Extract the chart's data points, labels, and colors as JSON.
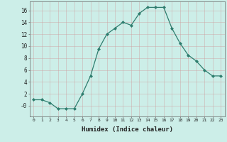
{
  "x": [
    0,
    1,
    2,
    3,
    4,
    5,
    6,
    7,
    8,
    9,
    10,
    11,
    12,
    13,
    14,
    15,
    16,
    17,
    18,
    19,
    20,
    21,
    22,
    23
  ],
  "y": [
    1.0,
    1.0,
    0.5,
    -0.5,
    -0.5,
    -0.5,
    2.0,
    5.0,
    9.5,
    12.0,
    13.0,
    14.0,
    13.5,
    15.5,
    16.5,
    16.5,
    16.5,
    13.0,
    10.5,
    8.5,
    7.5,
    6.0,
    5.0,
    5.0
  ],
  "line_color": "#2e7d6e",
  "marker": "D",
  "marker_size": 2.0,
  "bg_color": "#cceee8",
  "grid_color": "#b0b0b0",
  "xlabel": "Humidex (Indice chaleur)",
  "xlim": [
    -0.5,
    23.5
  ],
  "ylim": [
    -1.8,
    17.5
  ],
  "yticks": [
    0,
    2,
    4,
    6,
    8,
    10,
    12,
    14,
    16
  ],
  "ytick_labels": [
    "-0",
    "2",
    "4",
    "6",
    "8",
    "10",
    "12",
    "14",
    "16"
  ],
  "xticks": [
    0,
    1,
    2,
    3,
    4,
    5,
    6,
    7,
    8,
    9,
    10,
    11,
    12,
    13,
    14,
    15,
    16,
    17,
    18,
    19,
    20,
    21,
    22,
    23
  ]
}
